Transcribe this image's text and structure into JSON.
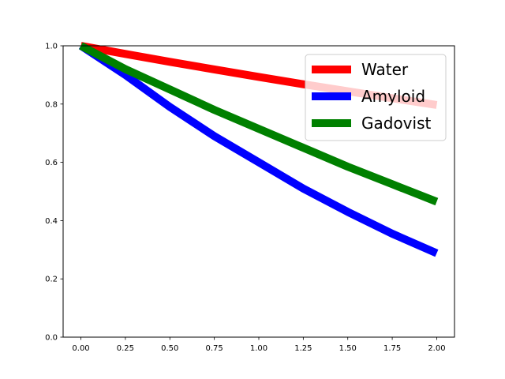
{
  "chart_data": {
    "type": "line",
    "title": "",
    "xlabel": "",
    "ylabel": "",
    "xlim": [
      -0.1,
      2.1
    ],
    "ylim": [
      0.0,
      1.0
    ],
    "grid": false,
    "legend_position": "top-right",
    "x_ticks": [
      0.0,
      0.25,
      0.5,
      0.75,
      1.0,
      1.25,
      1.5,
      1.75,
      2.0
    ],
    "x_tick_labels": [
      "0.00",
      "0.25",
      "0.50",
      "0.75",
      "1.00",
      "1.25",
      "1.50",
      "1.75",
      "2.00"
    ],
    "y_ticks": [
      0.0,
      0.2,
      0.4,
      0.6,
      0.8,
      1.0
    ],
    "y_tick_labels": [
      "0.0",
      "0.2",
      "0.4",
      "0.6",
      "0.8",
      "1.0"
    ],
    "x": [
      0.0,
      0.25,
      0.5,
      0.75,
      1.0,
      1.25,
      1.5,
      1.75,
      2.0
    ],
    "series": [
      {
        "name": "Water",
        "color": "#ff0000",
        "values": [
          1.0,
          0.972,
          0.945,
          0.919,
          0.893,
          0.868,
          0.844,
          0.82,
          0.797
        ]
      },
      {
        "name": "Amyloid",
        "color": "#0000ff",
        "values": [
          1.0,
          0.9,
          0.79,
          0.69,
          0.6,
          0.51,
          0.43,
          0.355,
          0.288
        ]
      },
      {
        "name": "Gadovist",
        "color": "#008000",
        "values": [
          1.0,
          0.92,
          0.85,
          0.78,
          0.715,
          0.65,
          0.585,
          0.525,
          0.465
        ]
      }
    ]
  }
}
